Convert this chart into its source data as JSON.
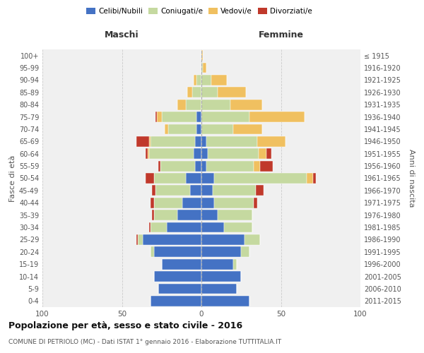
{
  "age_groups": [
    "0-4",
    "5-9",
    "10-14",
    "15-19",
    "20-24",
    "25-29",
    "30-34",
    "35-39",
    "40-44",
    "45-49",
    "50-54",
    "55-59",
    "60-64",
    "65-69",
    "70-74",
    "75-79",
    "80-84",
    "85-89",
    "90-94",
    "95-99",
    "100+"
  ],
  "birth_years": [
    "2011-2015",
    "2006-2010",
    "2001-2005",
    "1996-2000",
    "1991-1995",
    "1986-1990",
    "1981-1985",
    "1976-1980",
    "1971-1975",
    "1966-1970",
    "1961-1965",
    "1956-1960",
    "1951-1955",
    "1946-1950",
    "1941-1945",
    "1936-1940",
    "1931-1935",
    "1926-1930",
    "1921-1925",
    "1916-1920",
    "≤ 1915"
  ],
  "male": {
    "celibi": [
      32,
      27,
      30,
      25,
      30,
      37,
      22,
      15,
      12,
      7,
      10,
      4,
      5,
      4,
      3,
      3,
      0,
      0,
      0,
      0,
      0
    ],
    "coniugati": [
      0,
      0,
      0,
      0,
      2,
      3,
      10,
      15,
      18,
      22,
      20,
      22,
      28,
      28,
      18,
      22,
      10,
      6,
      3,
      0,
      0
    ],
    "vedovi": [
      0,
      0,
      0,
      0,
      0,
      0,
      0,
      0,
      0,
      0,
      0,
      0,
      1,
      1,
      2,
      3,
      5,
      3,
      2,
      0,
      0
    ],
    "divorziati": [
      0,
      0,
      0,
      0,
      0,
      1,
      1,
      1,
      2,
      2,
      5,
      1,
      1,
      8,
      0,
      1,
      0,
      0,
      0,
      0,
      0
    ]
  },
  "female": {
    "nubili": [
      30,
      22,
      25,
      20,
      25,
      27,
      14,
      10,
      8,
      7,
      8,
      3,
      4,
      3,
      0,
      0,
      0,
      0,
      0,
      0,
      0
    ],
    "coniugate": [
      0,
      0,
      0,
      2,
      5,
      10,
      18,
      22,
      25,
      27,
      58,
      30,
      32,
      32,
      20,
      30,
      18,
      10,
      6,
      1,
      0
    ],
    "vedove": [
      0,
      0,
      0,
      0,
      0,
      0,
      0,
      0,
      0,
      0,
      4,
      4,
      5,
      18,
      18,
      35,
      20,
      18,
      10,
      2,
      1
    ],
    "divorziate": [
      0,
      0,
      0,
      0,
      0,
      0,
      0,
      0,
      2,
      5,
      2,
      8,
      3,
      0,
      0,
      0,
      0,
      0,
      0,
      0,
      0
    ]
  },
  "colors": {
    "celibi": "#4472c4",
    "coniugati": "#c5d9a0",
    "vedovi": "#f0c060",
    "divorziati": "#c0392b"
  },
  "xlim": 100,
  "title": "Popolazione per età, sesso e stato civile - 2016",
  "subtitle": "COMUNE DI PETRIOLO (MC) - Dati ISTAT 1° gennaio 2016 - Elaborazione TUTTITALIA.IT",
  "ylabel_left": "Fasce di età",
  "ylabel_right": "Anni di nascita",
  "xlabel_left": "Maschi",
  "xlabel_right": "Femmine",
  "bg_color": "#f0f0f0",
  "grid_color": "#cccccc"
}
